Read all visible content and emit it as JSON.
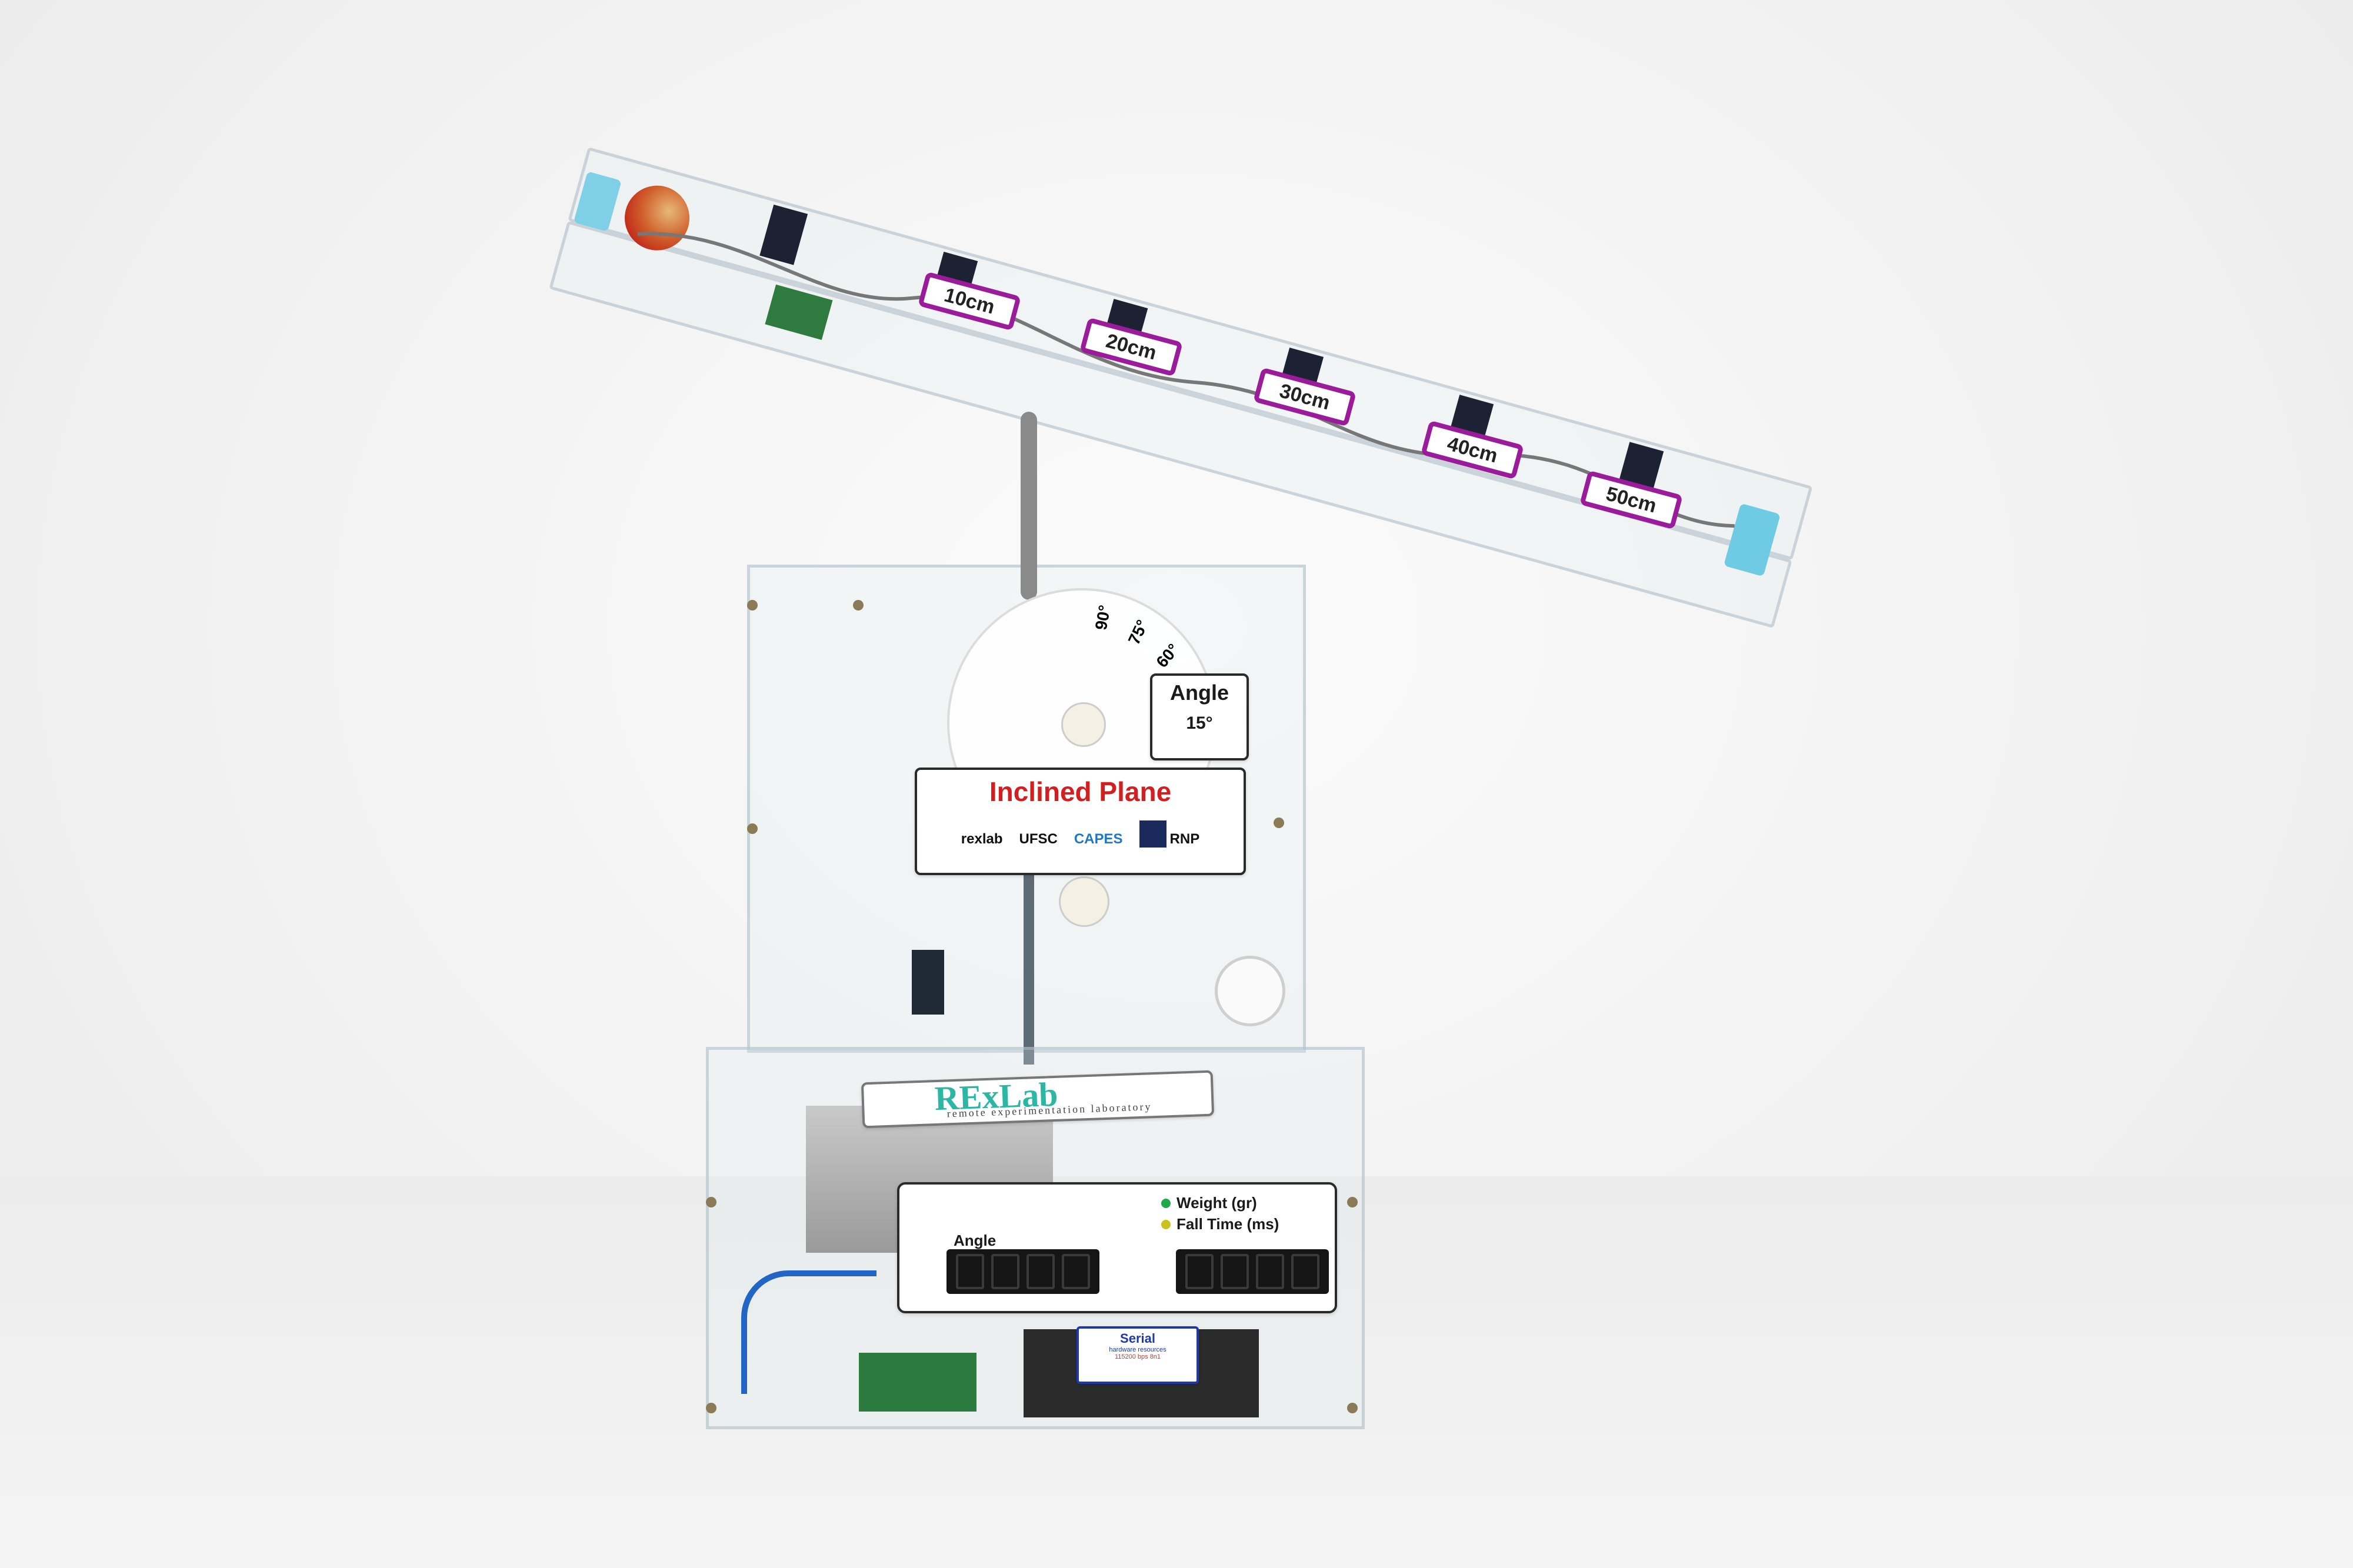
{
  "scene": {
    "background_color": "#f2f2f2",
    "accent_purple": "#9b1c9b",
    "title_red": "#d21f1f",
    "rexlab_green": "#2bb7a3"
  },
  "distance_tags": [
    "10cm",
    "20cm",
    "30cm",
    "40cm",
    "50cm"
  ],
  "protractor": {
    "marks": [
      "90°",
      "75°",
      "60°"
    ]
  },
  "angle_card": {
    "title": "Angle",
    "value": "15°"
  },
  "title_card": {
    "title": "Inclined Plane",
    "logos": [
      "rexlab",
      "UFSC",
      "CAPES",
      "RNP"
    ]
  },
  "rexlab_banner": {
    "name": "RExLab",
    "subtitle": "remote experimentation laboratory"
  },
  "display_panel": {
    "angle_label": "Angle",
    "legend": [
      "Weight (gr)",
      "Fall Time (ms)"
    ],
    "display_digits": "8888"
  },
  "serial_card": {
    "title": "Serial",
    "line1": "hardware resources",
    "line2": "115200 bps 8n1"
  }
}
